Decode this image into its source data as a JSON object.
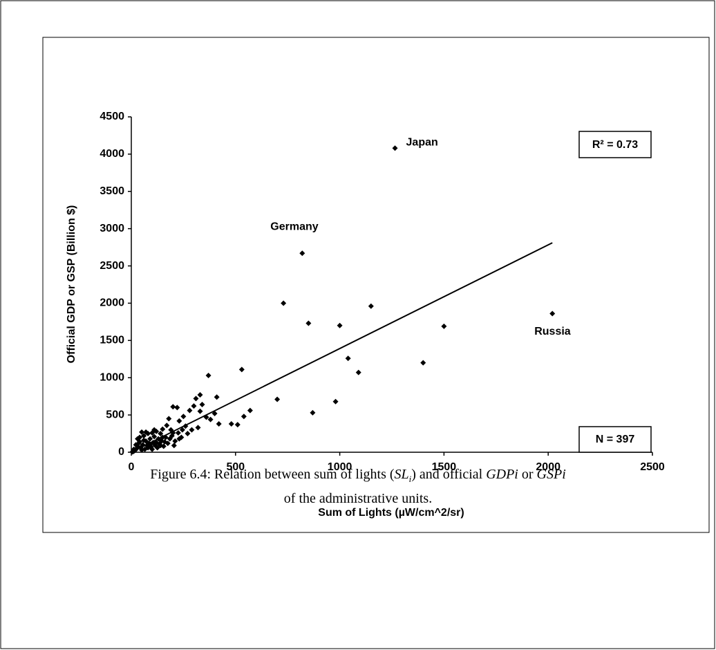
{
  "chart_data": {
    "type": "scatter",
    "xlabel": "Sum of Lights (µW/cm^2/sr)",
    "ylabel": "Official GDP  or GSP (Billion $)",
    "xlim": [
      0,
      2500
    ],
    "ylim": [
      0,
      4500
    ],
    "xticks": [
      0,
      500,
      1000,
      1500,
      2000,
      2500
    ],
    "yticks": [
      0,
      500,
      1000,
      1500,
      2000,
      2500,
      3000,
      3500,
      4000,
      4500
    ],
    "color": "#000000",
    "x": [
      1265,
      820,
      2020,
      730,
      850,
      1000,
      1150,
      1500,
      1400,
      1040,
      1090,
      530,
      370,
      700,
      980,
      870,
      570,
      540,
      480,
      510,
      410,
      330,
      310,
      300,
      340,
      400,
      380,
      420,
      360,
      330,
      280,
      250,
      230,
      200,
      220,
      260,
      290,
      320,
      270,
      240,
      190,
      180,
      170,
      150,
      140,
      130,
      120,
      110,
      100,
      90,
      80,
      70,
      60,
      50,
      40,
      35,
      30,
      25,
      20,
      15,
      10,
      45,
      55,
      65,
      75,
      85,
      95,
      105,
      115,
      125,
      135,
      145,
      155,
      165,
      175,
      185,
      195,
      210,
      225,
      245,
      205,
      60,
      40,
      50,
      30,
      100,
      80,
      120,
      150,
      110,
      90,
      70,
      5,
      12,
      22,
      160,
      140,
      200,
      230
    ],
    "values": [
      4080,
      2670,
      1860,
      2000,
      1730,
      1700,
      1960,
      1690,
      1200,
      1260,
      1070,
      1110,
      1030,
      710,
      680,
      530,
      560,
      480,
      380,
      370,
      740,
      770,
      720,
      620,
      640,
      520,
      440,
      380,
      470,
      550,
      560,
      480,
      420,
      610,
      600,
      350,
      300,
      330,
      250,
      200,
      300,
      450,
      360,
      310,
      250,
      180,
      280,
      210,
      260,
      180,
      250,
      150,
      220,
      270,
      200,
      120,
      80,
      50,
      30,
      20,
      10,
      60,
      100,
      40,
      90,
      120,
      70,
      130,
      90,
      60,
      110,
      150,
      80,
      200,
      120,
      180,
      220,
      150,
      260,
      300,
      90,
      160,
      140,
      30,
      180,
      40,
      60,
      130,
      200,
      300,
      100,
      270,
      5,
      40,
      100,
      140,
      90,
      260,
      180
    ],
    "trendline": {
      "x": [
        0,
        2020
      ],
      "y": [
        0,
        2810
      ]
    },
    "annotations": [
      {
        "text": "Japan",
        "x": 1265,
        "y": 4080
      },
      {
        "text": "Germany",
        "x": 820,
        "y": 2670
      },
      {
        "text": "Russia",
        "x": 2020,
        "y": 1860
      }
    ],
    "r_squared": "R² = 0.73",
    "n_label": "N = 397"
  },
  "caption": {
    "line1": [
      "Figure 6.4: Relation between sum of lights (",
      "SL",
      "i",
      ") and official ",
      "GDPi",
      " or ",
      "GSPi"
    ],
    "line2": "of the administrative units."
  }
}
